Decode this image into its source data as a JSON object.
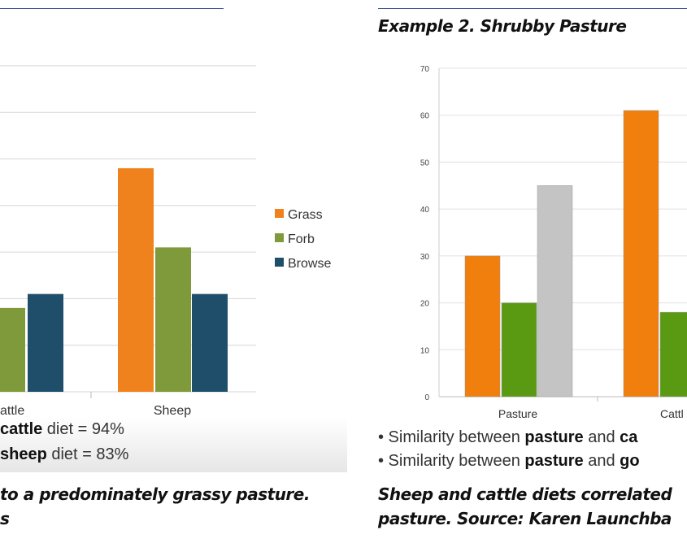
{
  "chart_data": [
    {
      "type": "bar",
      "categories": [
        "Cattle",
        "Sheep"
      ],
      "category_labels_visible": [
        "attle",
        "Sheep"
      ],
      "series": [
        {
          "name": "Grass",
          "color": "#f0821e",
          "values": [
            null,
            4.8
          ]
        },
        {
          "name": "Forb",
          "color": "#7f9a3a",
          "values": [
            1.8,
            3.1
          ]
        },
        {
          "name": "Browse",
          "color": "#1f4e6b",
          "values": [
            2.1,
            2.1
          ]
        }
      ],
      "legend": "right",
      "grid": true,
      "notes": [
        {
          "bold": "cattle",
          "rest": " diet = 94%"
        },
        {
          "bold": "sheep",
          "rest": " diet = 83%"
        }
      ]
    },
    {
      "type": "bar",
      "title": "Example 2. Shrubby Pasture",
      "categories": [
        "Pasture",
        "Cattl"
      ],
      "ylim": [
        0,
        70
      ],
      "yticks": [
        "0",
        "10",
        "20",
        "30",
        "40",
        "50",
        "60",
        "70"
      ],
      "series": [
        {
          "color": "#f07f0e",
          "values": [
            30,
            61
          ]
        },
        {
          "color": "#5a9a12",
          "values": [
            20,
            18
          ]
        },
        {
          "color": "#c4c4c4",
          "values": [
            45,
            null
          ]
        }
      ],
      "notes": [
        {
          "pre": "• Similarity between ",
          "bold1": "pasture",
          "mid": " and ",
          "bold2": "ca"
        },
        {
          "pre": "• Similarity between ",
          "bold1": "pasture",
          "mid": " and ",
          "bold2": "go"
        }
      ]
    }
  ],
  "captions": {
    "left1": "to a predominately grassy pasture.",
    "left2": "s",
    "right1": "Sheep and cattle diets correlated",
    "right2": "pasture. Source: Karen Launchba"
  }
}
